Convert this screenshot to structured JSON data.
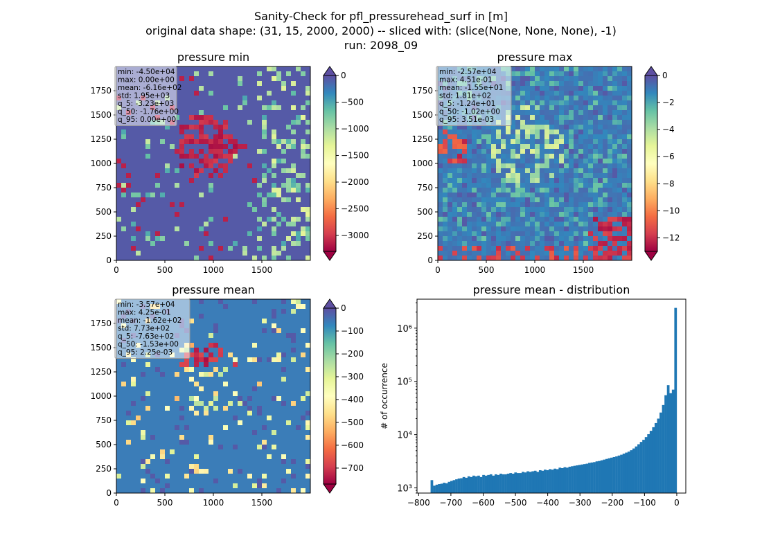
{
  "figure": {
    "suptitle_line1": "Sanity-Check for pfl_pressurehead_surf in [m]",
    "suptitle_line2": "original data shape: (31, 15, 2000, 2000) -- sliced with: (slice(None, None, None), -1)",
    "suptitle_line3": "run: 2098_09"
  },
  "colormap_spectral": [
    "#9e0142",
    "#d53e4f",
    "#f46d43",
    "#fdae61",
    "#fee08b",
    "#ffffbf",
    "#e6f598",
    "#abdda4",
    "#66c2a5",
    "#3288bd",
    "#5e4fa2"
  ],
  "chart_data": [
    {
      "type": "heatmap",
      "title": "pressure min",
      "colormap": "Spectral",
      "x_ticks": [
        "0",
        "500",
        "1000",
        "1500"
      ],
      "y_ticks": [
        "0",
        "250",
        "500",
        "750",
        "1000",
        "1250",
        "1500",
        "1750"
      ],
      "xlim": [
        0,
        2000
      ],
      "ylim": [
        0,
        2000
      ],
      "colorbar": {
        "vmin": -3300,
        "vmax": 0,
        "extend": "both",
        "ticks": [
          0,
          -500,
          -1000,
          -1500,
          -2000,
          -2500,
          -3000
        ],
        "tick_labels": [
          "0",
          "−500",
          "−1000",
          "−1500",
          "−2000",
          "−2500",
          "−3000"
        ]
      },
      "stats": [
        "min: -4.50e+04",
        "max: 0.00e+00",
        "mean: -6.16e+02",
        "std: 1.95e+03",
        "q_5: -3.23e+03",
        "q_50: -1.76e+00",
        "q_95: 0.00e+00"
      ],
      "dominant_value": "max"
    },
    {
      "type": "heatmap",
      "title": "pressure max",
      "colormap": "Spectral",
      "x_ticks": [
        "0",
        "500",
        "1000",
        "1500"
      ],
      "y_ticks": [
        "0",
        "250",
        "500",
        "750",
        "1000",
        "1250",
        "1500",
        "1750"
      ],
      "xlim": [
        0,
        2000
      ],
      "ylim": [
        0,
        2000
      ],
      "colorbar": {
        "vmin": -13,
        "vmax": 0,
        "extend": "both",
        "ticks": [
          0,
          -2,
          -4,
          -6,
          -8,
          -10,
          -12
        ],
        "tick_labels": [
          "0",
          "−2",
          "−4",
          "−6",
          "−8",
          "−10",
          "−12"
        ]
      },
      "stats": [
        "min: -2.57e+04",
        "max: 4.51e-01",
        "mean: -1.55e+01",
        "std: 1.81e+02",
        "q_5: -1.24e+01",
        "q_50: -1.02e+00",
        "q_95: 3.51e-03"
      ],
      "dominant_value": "near-zero"
    },
    {
      "type": "heatmap",
      "title": "pressure mean",
      "colormap": "Spectral",
      "x_ticks": [
        "0",
        "500",
        "1000",
        "1500"
      ],
      "y_ticks": [
        "0",
        "250",
        "500",
        "750",
        "1000",
        "1250",
        "1500",
        "1750"
      ],
      "xlim": [
        0,
        2000
      ],
      "ylim": [
        0,
        2000
      ],
      "colorbar": {
        "vmin": -770,
        "vmax": 0,
        "extend": "both",
        "ticks": [
          0,
          -100,
          -200,
          -300,
          -400,
          -500,
          -600,
          -700
        ],
        "tick_labels": [
          "0",
          "−100",
          "−200",
          "−300",
          "−400",
          "−500",
          "−600",
          "−700"
        ]
      },
      "stats": [
        "min: -3.57e+04",
        "max: 4.25e-01",
        "mean: -1.62e+02",
        "std: 7.73e+02",
        "q_5: -7.63e+02",
        "q_50: -1.53e+00",
        "q_95: 2.25e-03"
      ],
      "dominant_value": "near-zero"
    },
    {
      "type": "bar",
      "title": "pressure mean - distribution",
      "ylabel": "# of occurrence",
      "xlabel": "",
      "y_scale": "log",
      "color": "#1f77b4",
      "xlim": [
        -805,
        28
      ],
      "ylim": [
        800,
        3500000
      ],
      "x_ticks": [
        -800,
        -700,
        -600,
        -500,
        -400,
        -300,
        -200,
        -100,
        0
      ],
      "x_tick_labels": [
        "−800",
        "−700",
        "−600",
        "−500",
        "−400",
        "−300",
        "−200",
        "−100",
        "0"
      ],
      "y_ticks": [
        1000,
        10000,
        100000,
        1000000
      ],
      "y_tick_labels": [
        "10³",
        "10⁴",
        "10⁵",
        "10⁶"
      ],
      "bin_range": [
        -763,
        0
      ],
      "bin_count": 100,
      "bin_counts": [
        1400,
        1100,
        1150,
        1180,
        1200,
        1250,
        1220,
        1300,
        1350,
        1400,
        1450,
        1500,
        1520,
        1600,
        1550,
        1650,
        1600,
        1700,
        1650,
        1700,
        1600,
        1750,
        1700,
        1750,
        1800,
        1700,
        1800,
        1750,
        1850,
        1800,
        1800,
        1850,
        1900,
        1850,
        1950,
        1900,
        1900,
        2000,
        1950,
        2050,
        2000,
        2050,
        2100,
        2000,
        2150,
        2100,
        2200,
        2150,
        2250,
        2200,
        2300,
        2250,
        2400,
        2350,
        2450,
        2400,
        2500,
        2550,
        2600,
        2650,
        2700,
        2750,
        2800,
        2850,
        2950,
        3000,
        3050,
        3150,
        3200,
        3300,
        3400,
        3500,
        3600,
        3700,
        3800,
        3900,
        4050,
        4200,
        4400,
        4600,
        4800,
        5100,
        5500,
        6000,
        6600,
        7300,
        8000,
        9000,
        10200,
        11800,
        13800,
        16500,
        20000,
        26000,
        36000,
        55000,
        85000,
        60000,
        70000,
        2400000
      ]
    }
  ]
}
